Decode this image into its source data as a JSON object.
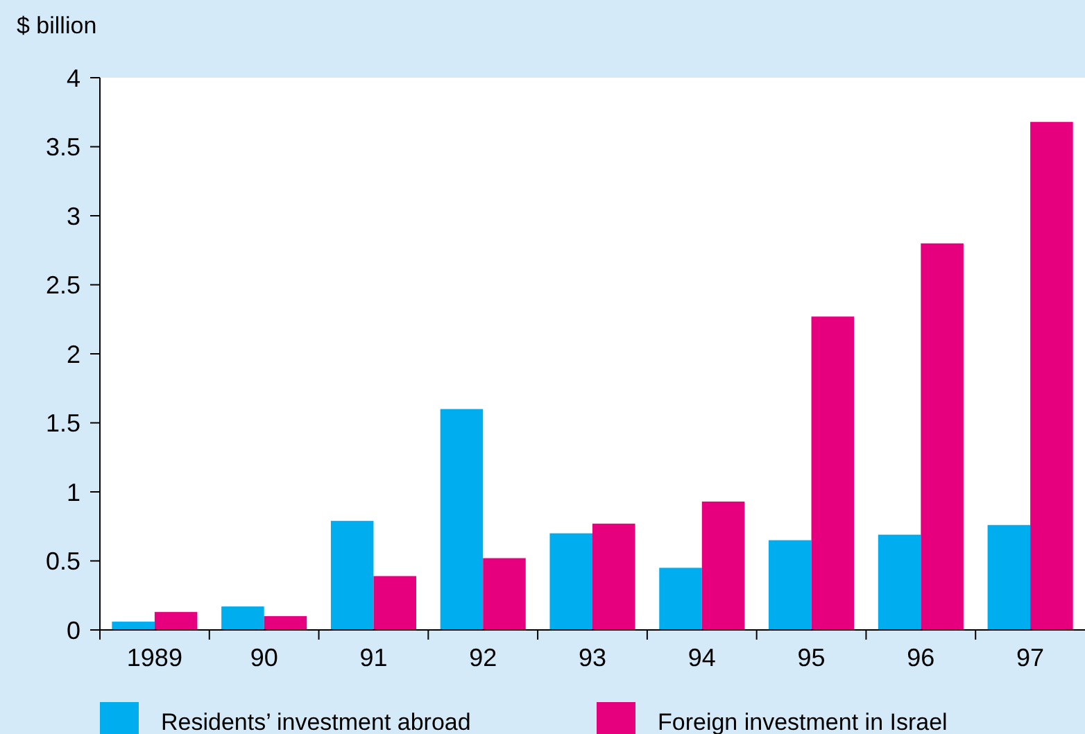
{
  "chart_data": {
    "type": "bar",
    "ylabel": "$ billion",
    "categories": [
      "1989",
      "90",
      "91",
      "92",
      "93",
      "94",
      "95",
      "96",
      "97"
    ],
    "series": [
      {
        "name": "Residents’ investment abroad",
        "color": "#00aeef",
        "values": [
          0.06,
          0.17,
          0.79,
          1.6,
          0.7,
          0.45,
          0.65,
          0.69,
          0.76
        ]
      },
      {
        "name": "Foreign investment in Israel",
        "color": "#e6007e",
        "values": [
          0.13,
          0.1,
          0.39,
          0.52,
          0.77,
          0.93,
          2.27,
          2.8,
          3.68
        ]
      }
    ],
    "ylim": [
      0,
      4
    ],
    "yticks": [
      0,
      0.5,
      1,
      1.5,
      2,
      2.5,
      3,
      3.5,
      4
    ],
    "grid": false,
    "legend": "bottom"
  }
}
